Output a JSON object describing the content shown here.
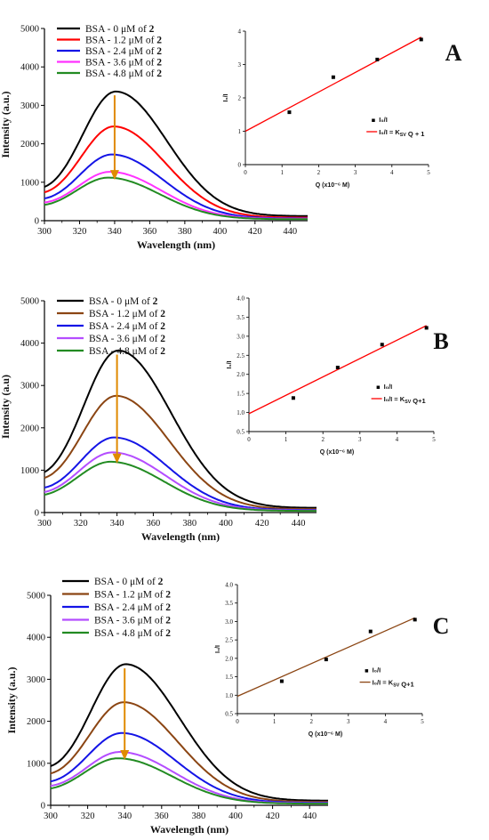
{
  "chart_data": [
    {
      "panel": "A",
      "type": "line",
      "xlabel": "Wavelength (nm)",
      "ylabel": "Intensity (a.u.)",
      "xlim": [
        300,
        450
      ],
      "ylim": [
        0,
        5000
      ],
      "xticks": [
        300,
        320,
        340,
        360,
        380,
        400,
        420,
        440
      ],
      "yticks": [
        0,
        1000,
        2000,
        3000,
        4000,
        5000
      ],
      "legend": [
        "BSA - 0 μM of 2",
        "BSA - 1.2 μM of 2",
        "BSA - 2.4 μM of 2",
        "BSA - 3.6 μM of 2",
        "BSA - 4.8 μM of 2"
      ],
      "legend_position": "top-left",
      "series": [
        {
          "color": "#000000",
          "peak_x": 341,
          "peak": 3240,
          "start": 820,
          "end": 120
        },
        {
          "color": "#ff0000",
          "peak_x": 340,
          "peak": 2360,
          "start": 700,
          "end": 80
        },
        {
          "color": "#1414e6",
          "peak_x": 339,
          "peak": 1650,
          "start": 550,
          "end": 60
        },
        {
          "color": "#ff33ff",
          "peak_x": 338,
          "peak": 1210,
          "start": 450,
          "end": 50
        },
        {
          "color": "#228b22",
          "peak_x": 337,
          "peak": 1070,
          "start": 390,
          "end": 40
        }
      ],
      "arrow_color": "#e08a00",
      "inset": {
        "type": "scatter",
        "xlabel": "Q (x10⁻⁶ M)",
        "ylabel": "I₀/I",
        "xlim": [
          0,
          5
        ],
        "ylim": [
          0,
          4
        ],
        "xticks": [
          "0",
          "1",
          "2",
          "3",
          "4",
          "5"
        ],
        "yticks": [
          "0",
          "1",
          "2",
          "3",
          "4"
        ],
        "points": [
          [
            1.2,
            1.57
          ],
          [
            2.4,
            2.62
          ],
          [
            3.6,
            3.15
          ],
          [
            4.8,
            3.75
          ]
        ],
        "fit": [
          [
            0,
            1.0
          ],
          [
            4.8,
            3.82
          ]
        ],
        "fit_color": "#ff0000",
        "legend_points": "I₀/I",
        "legend_fit": "I₀/I = K_SV Q + 1"
      }
    },
    {
      "panel": "B",
      "type": "line",
      "xlabel": "Wavelength (nm)",
      "ylabel": "Intensity (a.u)",
      "xlim": [
        300,
        450
      ],
      "ylim": [
        0,
        5000
      ],
      "xticks": [
        300,
        320,
        340,
        360,
        380,
        400,
        420,
        440
      ],
      "yticks": [
        0,
        1000,
        2000,
        3000,
        4000,
        5000
      ],
      "legend": [
        "BSA - 0 μM of 2",
        "BSA - 1.2 μM of 2",
        "BSA - 2.4 μM of 2",
        "BSA - 3.6 μM of 2",
        "BSA - 4.8 μM of 2"
      ],
      "legend_position": "top-left",
      "series": [
        {
          "color": "#000000",
          "peak_x": 341,
          "peak": 3710,
          "start": 900,
          "end": 110
        },
        {
          "color": "#8b4513",
          "peak_x": 340,
          "peak": 2660,
          "start": 780,
          "end": 80
        },
        {
          "color": "#1414e6",
          "peak_x": 339,
          "peak": 1700,
          "start": 560,
          "end": 60
        },
        {
          "color": "#b44dff",
          "peak_x": 338,
          "peak": 1360,
          "start": 460,
          "end": 50
        },
        {
          "color": "#228b22",
          "peak_x": 337,
          "peak": 1150,
          "start": 400,
          "end": 40
        }
      ],
      "arrow_color": "#e08a00",
      "inset": {
        "type": "scatter",
        "xlabel": "Q (x10⁻⁶ M)",
        "ylabel": "I₀/I",
        "xlim": [
          0,
          5
        ],
        "ylim": [
          0.5,
          4.0
        ],
        "xticks": [
          "0",
          "1",
          "2",
          "3",
          "4",
          "5"
        ],
        "yticks": [
          "0.5",
          "1.0",
          "1.5",
          "2.0",
          "2.5",
          "3.0",
          "3.5",
          "4.0"
        ],
        "points": [
          [
            1.2,
            1.38
          ],
          [
            2.4,
            2.18
          ],
          [
            3.6,
            2.78
          ],
          [
            4.8,
            3.22
          ]
        ],
        "fit": [
          [
            0,
            0.97
          ],
          [
            4.8,
            3.28
          ]
        ],
        "fit_color": "#ff0000",
        "legend_points": "I₀/I",
        "legend_fit": "I₀/I = K_SV Q+1"
      }
    },
    {
      "panel": "C",
      "type": "line",
      "xlabel": "Wavelength (nm)",
      "ylabel": "Intensity (a.u.)",
      "xlim": [
        300,
        450
      ],
      "ylim": [
        0,
        5000
      ],
      "xticks": [
        300,
        320,
        340,
        360,
        380,
        400,
        420,
        440
      ],
      "yticks": [
        0,
        1000,
        2000,
        3000,
        4000,
        5000
      ],
      "legend": [
        "BSA - 0 μM of 2",
        "BSA - 1.2 μM of 2",
        "BSA - 2.4 μM of 2",
        "BSA - 3.6 μM of 2",
        "BSA - 4.8 μM of 2"
      ],
      "legend_position": "top-left",
      "series": [
        {
          "color": "#000000",
          "peak_x": 341,
          "peak": 3240,
          "start": 880,
          "end": 110
        },
        {
          "color": "#8b4513",
          "peak_x": 340,
          "peak": 2360,
          "start": 720,
          "end": 80
        },
        {
          "color": "#1414e6",
          "peak_x": 339,
          "peak": 1650,
          "start": 540,
          "end": 60
        },
        {
          "color": "#b44dff",
          "peak_x": 338,
          "peak": 1210,
          "start": 440,
          "end": 50
        },
        {
          "color": "#228b22",
          "peak_x": 337,
          "peak": 1070,
          "start": 380,
          "end": 40
        }
      ],
      "arrow_color": "#e08a00",
      "inset": {
        "type": "scatter",
        "xlabel": "Q (x10⁻⁶ M)",
        "ylabel": "I₀/I",
        "xlim": [
          0,
          5
        ],
        "ylim": [
          0.5,
          4.0
        ],
        "xticks": [
          "0",
          "1",
          "2",
          "3",
          "4",
          "5"
        ],
        "yticks": [
          "0.5",
          "1.0",
          "1.5",
          "2.0",
          "2.5",
          "3.0",
          "3.5",
          "4.0"
        ],
        "points": [
          [
            1.2,
            1.38
          ],
          [
            2.4,
            1.97
          ],
          [
            3.6,
            2.73
          ],
          [
            4.8,
            3.05
          ]
        ],
        "fit": [
          [
            0,
            0.97
          ],
          [
            4.8,
            3.1
          ]
        ],
        "fit_color": "#8b4513",
        "legend_points": "I₀/I",
        "legend_fit": "I₀/I = K_SV Q+1"
      }
    }
  ]
}
